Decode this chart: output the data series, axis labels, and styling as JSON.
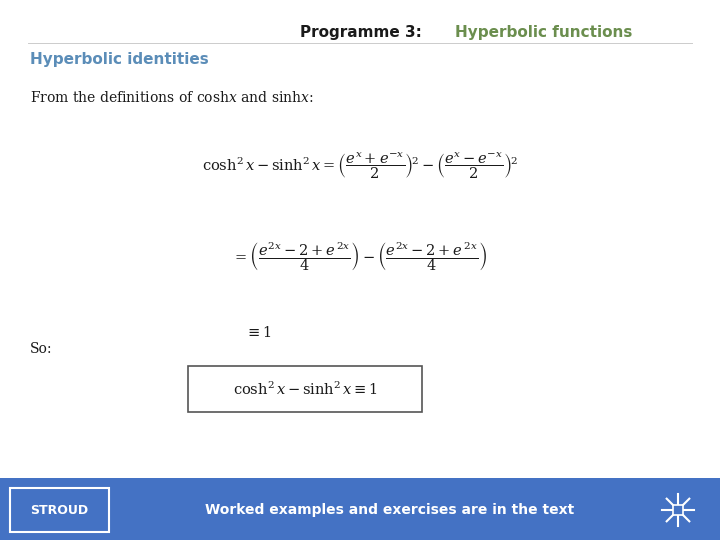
{
  "title_part1": "Programme 3:  ",
  "title_part2": "Hyperbolic functions",
  "title_color1": "#1a1a1a",
  "title_color2": "#6b8e4e",
  "section_title": "Hyperbolic identities",
  "section_color": "#5b8db8",
  "footer_bg": "#4472c4",
  "footer_stroud": "STROUD",
  "footer_text": "Worked examples and exercises are in the text",
  "so_text": "So:",
  "bg_color": "#ffffff",
  "from_text": "From the definitions of cosh\\u{78} and sinh\\u{78}:"
}
